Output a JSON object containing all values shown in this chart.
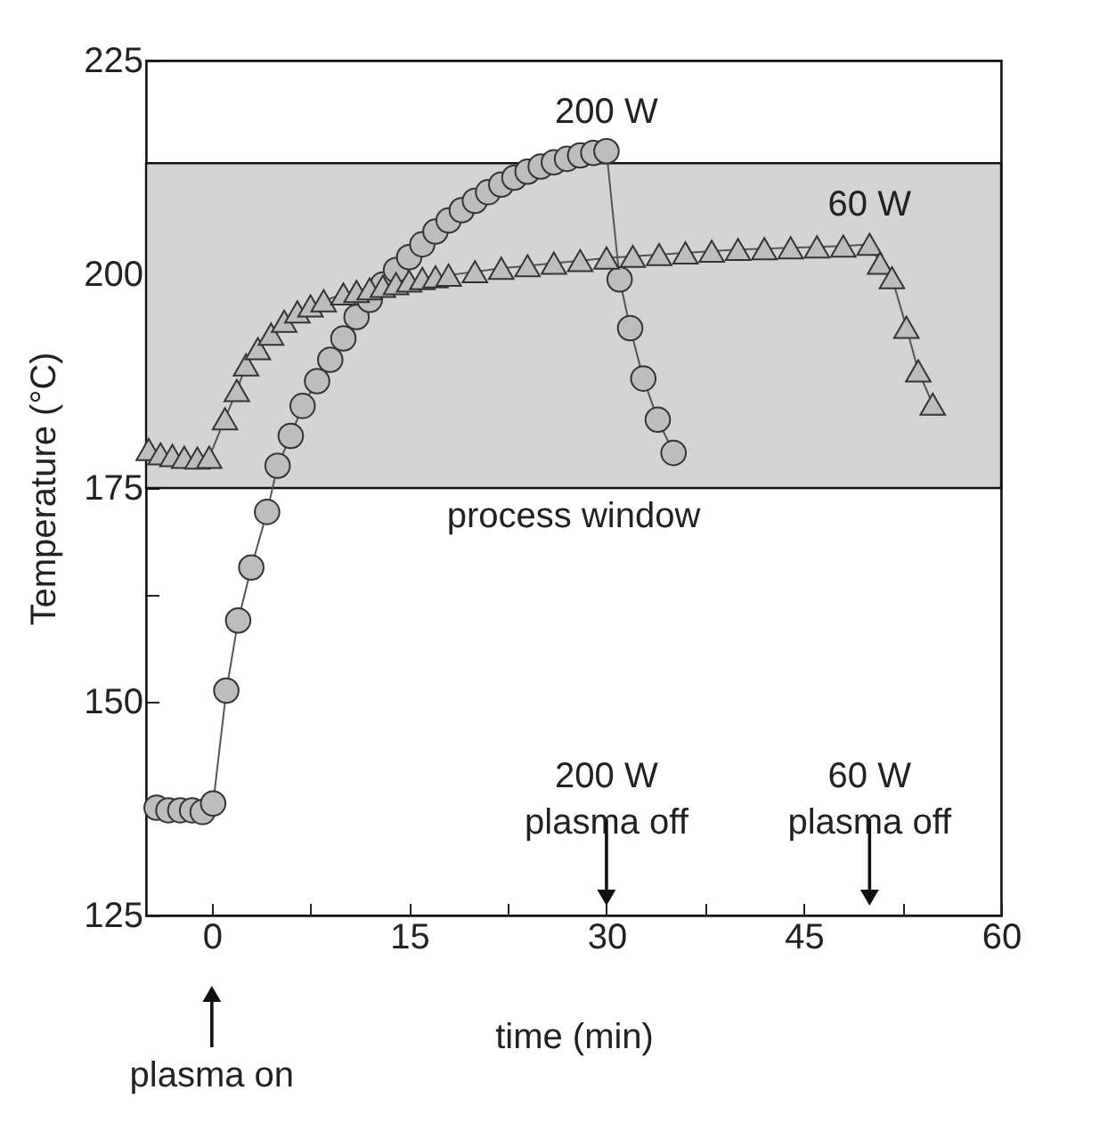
{
  "chart_data": {
    "type": "line",
    "xlabel": "time (min)",
    "ylabel": "Temperature (°C)",
    "xlim": [
      -5,
      60
    ],
    "xticks": [
      0,
      {
        "value": 7.5,
        "label": null
      },
      15,
      {
        "value": 22.5,
        "label": null
      },
      30,
      {
        "value": 37.5,
        "label": null
      },
      45,
      {
        "value": 52.5,
        "label": null
      },
      60
    ],
    "ylim": [
      125,
      225
    ],
    "yticks": [
      125,
      {
        "value": 137.5,
        "label": null
      },
      150,
      {
        "value": 162.5,
        "label": null
      },
      175,
      {
        "value": 187.5,
        "label": null
      },
      200,
      {
        "value": 212.5,
        "label": null
      },
      225
    ],
    "grid": false,
    "series": [
      {
        "name": "200 W",
        "color": "#bdbdbd",
        "marker": "circle",
        "x": [
          -4.2,
          -3.3,
          -2.4,
          -1.5,
          -0.7,
          0.1,
          1.1,
          2.0,
          3.0,
          4.2,
          5.0,
          6.0,
          6.9,
          8,
          9,
          10,
          11,
          12,
          13,
          14,
          15,
          16,
          17,
          18,
          19,
          20,
          21,
          22,
          23,
          24,
          25,
          26,
          27,
          28,
          29,
          30,
          31,
          31.8,
          32.8,
          33.9,
          35.1
        ],
        "values": [
          137.6,
          137.3,
          137.3,
          137.3,
          137.1,
          138.1,
          151.3,
          159.5,
          165.7,
          172.2,
          177.6,
          181.1,
          184.6,
          187.5,
          190,
          192.5,
          195,
          197,
          198.8,
          200.5,
          202,
          203.5,
          205,
          206.3,
          207.5,
          208.6,
          209.6,
          210.5,
          211.3,
          212,
          212.6,
          213.1,
          213.5,
          213.9,
          214.2,
          214.4,
          199.4,
          193.7,
          187.8,
          183,
          179.1
        ]
      },
      {
        "name": "60 W",
        "color": "#bdbdbd",
        "marker": "triangle",
        "x": [
          -4.8,
          -3.9,
          -3,
          -2.1,
          -1.1,
          -0.2,
          1.0,
          1.9,
          2.6,
          3.5,
          4.5,
          5.5,
          6.5,
          7.5,
          8.5,
          10,
          11,
          12,
          13,
          14,
          15,
          16,
          17,
          18,
          20,
          22,
          24,
          26,
          28,
          30,
          32,
          34,
          36,
          38,
          40,
          42,
          44,
          46,
          48,
          50,
          50.8,
          51.7,
          52.8,
          53.7,
          54.8
        ],
        "values": [
          179.5,
          179,
          178.8,
          178.6,
          178.5,
          178.6,
          183.1,
          186.4,
          189.4,
          191.3,
          193,
          194.5,
          195.6,
          196.3,
          196.9,
          197.7,
          198,
          198.3,
          198.6,
          198.9,
          199.2,
          199.5,
          199.7,
          199.9,
          200.3,
          200.7,
          201,
          201.3,
          201.6,
          201.9,
          202.1,
          202.3,
          202.5,
          202.7,
          202.9,
          203,
          203.1,
          203.2,
          203.3,
          203.5,
          201.3,
          199.6,
          193.8,
          188.7,
          184.8
        ]
      }
    ],
    "bands": [
      {
        "axis": "y",
        "from": 175,
        "to": 213,
        "label": "process window",
        "color": "#d4d4d4"
      }
    ],
    "ref_lines": [
      {
        "axis": "x",
        "value": 0,
        "label": "plasma on"
      },
      {
        "axis": "x",
        "value": 30,
        "label": "200 W\nplasma off"
      },
      {
        "axis": "x",
        "value": 50,
        "label": "60 W\nplasma off"
      }
    ]
  }
}
